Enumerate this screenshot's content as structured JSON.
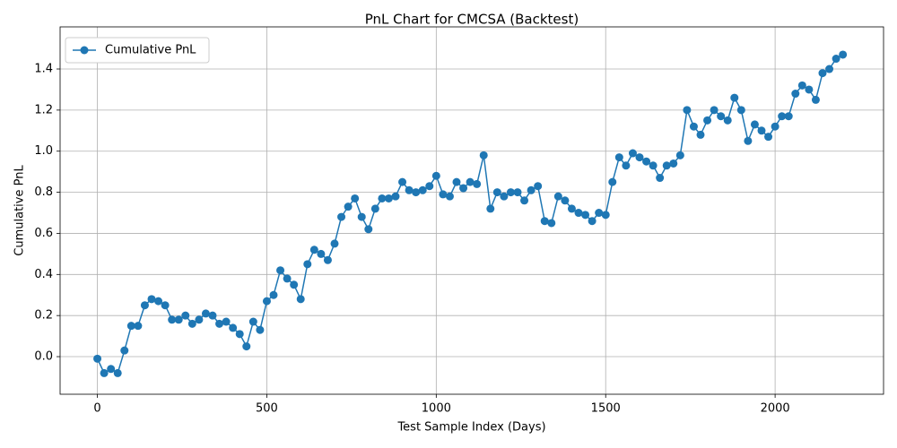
{
  "chart_data": {
    "type": "line",
    "title": "PnL Chart for CMCSA (Backtest)",
    "x_label": "Test Sample Index (Days)",
    "y_label": "Cumulative PnL",
    "legend_position": "upper left",
    "grid": true,
    "marker": true,
    "xlim": [
      -110,
      2320
    ],
    "ylim": [
      -0.183,
      1.605
    ],
    "xticks": [
      0,
      500,
      1000,
      1500,
      2000
    ],
    "yticks": [
      {
        "value": 0,
        "label": "0.0"
      },
      0.2,
      0.4,
      0.6,
      0.8,
      {
        "value": 1,
        "label": "1.0"
      },
      1.2,
      1.4
    ],
    "x": [
      0,
      20,
      40,
      60,
      80,
      100,
      120,
      140,
      160,
      180,
      200,
      220,
      240,
      260,
      280,
      300,
      320,
      340,
      360,
      380,
      400,
      420,
      440,
      460,
      480,
      500,
      520,
      540,
      560,
      580,
      600,
      620,
      640,
      660,
      680,
      700,
      720,
      740,
      760,
      780,
      800,
      820,
      840,
      860,
      880,
      900,
      920,
      940,
      960,
      980,
      1000,
      1020,
      1040,
      1060,
      1080,
      1100,
      1120,
      1140,
      1160,
      1180,
      1200,
      1220,
      1240,
      1260,
      1280,
      1300,
      1320,
      1340,
      1360,
      1380,
      1400,
      1420,
      1440,
      1460,
      1480,
      1500,
      1520,
      1540,
      1560,
      1580,
      1600,
      1620,
      1640,
      1660,
      1680,
      1700,
      1720,
      1740,
      1760,
      1780,
      1800,
      1820,
      1840,
      1860,
      1880,
      1900,
      1920,
      1940,
      1960,
      1980,
      2000,
      2020,
      2040,
      2060,
      2080,
      2100,
      2120,
      2140,
      2160,
      2180,
      2200
    ],
    "series": [
      {
        "name": "Cumulative PnL",
        "color": "#1f77b4",
        "values": [
          -0.01,
          -0.08,
          -0.06,
          -0.08,
          0.03,
          0.15,
          0.15,
          0.25,
          0.28,
          0.27,
          0.25,
          0.18,
          0.18,
          0.2,
          0.16,
          0.18,
          0.21,
          0.2,
          0.16,
          0.17,
          0.14,
          0.11,
          0.05,
          0.17,
          0.13,
          0.27,
          0.3,
          0.42,
          0.38,
          0.35,
          0.28,
          0.45,
          0.52,
          0.5,
          0.47,
          0.55,
          0.68,
          0.73,
          0.77,
          0.68,
          0.62,
          0.72,
          0.77,
          0.77,
          0.78,
          0.85,
          0.81,
          0.8,
          0.81,
          0.83,
          0.88,
          0.79,
          0.78,
          0.85,
          0.82,
          0.85,
          0.84,
          0.98,
          0.72,
          0.8,
          0.78,
          0.8,
          0.8,
          0.76,
          0.81,
          0.83,
          0.66,
          0.65,
          0.78,
          0.76,
          0.72,
          0.7,
          0.69,
          0.66,
          0.7,
          0.69,
          0.85,
          0.97,
          0.93,
          0.99,
          0.97,
          0.95,
          0.93,
          0.87,
          0.93,
          0.94,
          0.98,
          1.2,
          1.12,
          1.08,
          1.15,
          1.2,
          1.17,
          1.15,
          1.26,
          1.2,
          1.05,
          1.13,
          1.1,
          1.07,
          1.12,
          1.17,
          1.17,
          1.28,
          1.32,
          1.3,
          1.25,
          1.38,
          1.4,
          1.45,
          1.47
        ]
      }
    ]
  }
}
